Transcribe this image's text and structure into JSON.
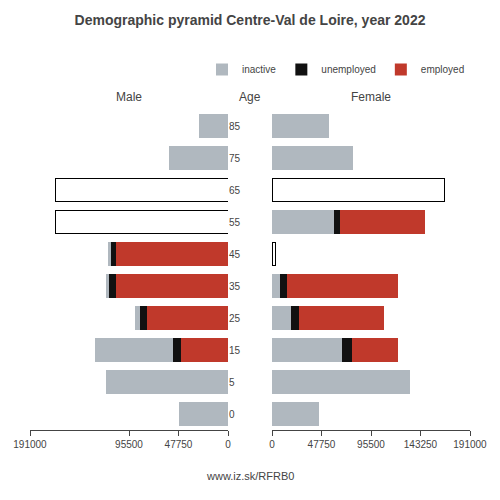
{
  "chart_data": [
    {
      "type": "bar",
      "orientation": "horizontal",
      "stacked": true,
      "title": "Demographic pyramid Centre-Val de Loire, year 2022",
      "xlabel": "Male",
      "ylabel": "Age",
      "categories": [
        "85",
        "75",
        "65",
        "55",
        "45",
        "35",
        "25",
        "15",
        "5",
        "0"
      ],
      "series": [
        {
          "name": "employed",
          "color": "#c0392b",
          "values": [
            0,
            0,
            0,
            0,
            108000,
            108000,
            78000,
            45000,
            0,
            0
          ]
        },
        {
          "name": "unemployed",
          "color": "#111111",
          "values": [
            0,
            0,
            0,
            0,
            5000,
            7000,
            7000,
            8000,
            0,
            0
          ]
        },
        {
          "name": "inactive",
          "colors": [
            "#b0b8bf",
            "#b0b8bf",
            "#ffffff",
            "#ffffff",
            "#b0b8bf",
            "#b0b8bf",
            "#b0b8bf",
            "#b0b8bf",
            "#b0b8bf",
            "#b0b8bf"
          ],
          "values": [
            28000,
            57000,
            166000,
            166000,
            3000,
            3000,
            5000,
            75000,
            118000,
            47000
          ]
        }
      ],
      "xlim": [
        191000,
        0
      ],
      "xticks": [
        191000,
        95500,
        47750,
        0
      ],
      "grid": false,
      "annotations": [
        "www.iz.sk/RFRB0"
      ]
    },
    {
      "type": "bar",
      "orientation": "horizontal",
      "stacked": true,
      "xlabel": "Female",
      "categories": [
        "85",
        "75",
        "65",
        "55",
        "45",
        "35",
        "25",
        "15",
        "5",
        "0"
      ],
      "series": [
        {
          "name": "inactive",
          "colors": [
            "#b0b8bf",
            "#b0b8bf",
            "#ffffff",
            "#b0b8bf",
            "#ffffff",
            "#b0b8bf",
            "#b0b8bf",
            "#b0b8bf",
            "#b0b8bf",
            "#b0b8bf"
          ],
          "values": [
            55000,
            78000,
            166000,
            60000,
            3000,
            8000,
            18000,
            68000,
            133000,
            45000
          ]
        },
        {
          "name": "unemployed",
          "color": "#111111",
          "values": [
            0,
            0,
            0,
            6000,
            0,
            6000,
            8000,
            9000,
            0,
            0
          ]
        },
        {
          "name": "employed",
          "color": "#c0392b",
          "values": [
            0,
            0,
            0,
            82000,
            0,
            108000,
            82000,
            45000,
            0,
            0
          ]
        }
      ],
      "xlim": [
        0,
        191000
      ],
      "xticks": [
        0,
        47750,
        95500,
        143250,
        191000
      ],
      "grid": false,
      "tick_labels": "x",
      "legend": "upper right"
    }
  ]
}
